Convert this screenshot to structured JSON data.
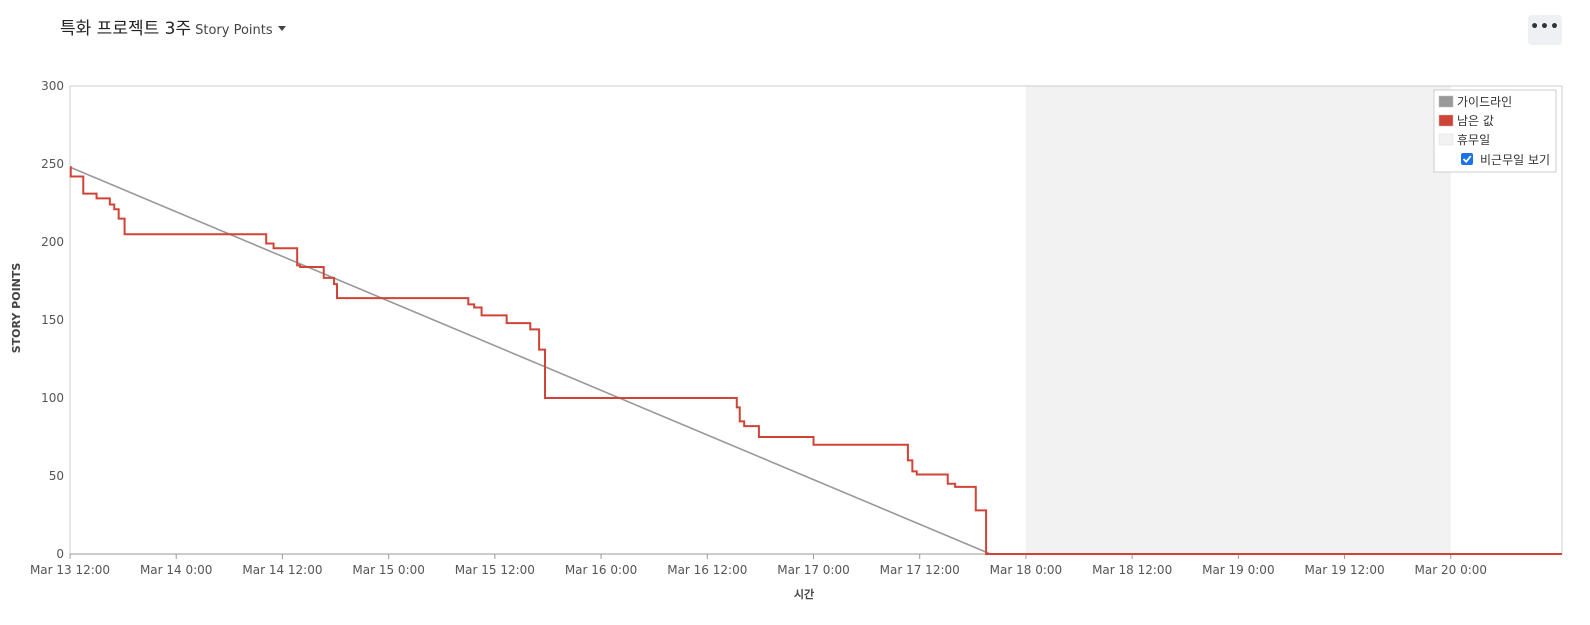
{
  "header": {
    "sprint_title": "특화 프로젝트 3주",
    "metric_label": "Story Points",
    "more_label": "•••"
  },
  "chart_data": {
    "type": "line",
    "xlabel": "시간",
    "ylabel": "STORY POINTS",
    "ylim": [
      0,
      300
    ],
    "yticks": [
      0,
      50,
      100,
      150,
      200,
      250,
      300
    ],
    "xlim": [
      "2023-03-13 12:00",
      "2023-03-20 12:00"
    ],
    "xticks": [
      "Mar 13 12:00",
      "Mar 14 0:00",
      "Mar 14 12:00",
      "Mar 15 0:00",
      "Mar 15 12:00",
      "Mar 16 0:00",
      "Mar 16 12:00",
      "Mar 17 0:00",
      "Mar 17 12:00",
      "Mar 18 0:00",
      "Mar 18 12:00",
      "Mar 19 0:00",
      "Mar 19 12:00",
      "Mar 20 0:00"
    ],
    "non_working_period": [
      "2023-03-18 0:00",
      "2023-03-20 0:00"
    ],
    "legend_position": "top-right",
    "series": [
      {
        "name": "가이드라인",
        "color": "#999999",
        "points": [
          [
            "2023-03-13 12:00",
            248
          ],
          [
            "2023-03-17 20:00",
            0
          ]
        ]
      },
      {
        "name": "남은 값",
        "color": "#d04437",
        "step": true,
        "points": [
          [
            "2023-03-13 12:00",
            248
          ],
          [
            "2023-03-13 12:05",
            242
          ],
          [
            "2023-03-13 13:30",
            231
          ],
          [
            "2023-03-13 15:00",
            228
          ],
          [
            "2023-03-13 16:30",
            224
          ],
          [
            "2023-03-13 17:00",
            221
          ],
          [
            "2023-03-13 17:30",
            215
          ],
          [
            "2023-03-13 18:10",
            205
          ],
          [
            "2023-03-14 10:10",
            199
          ],
          [
            "2023-03-14 11:00",
            196
          ],
          [
            "2023-03-14 13:40",
            185
          ],
          [
            "2023-03-14 14:00",
            184
          ],
          [
            "2023-03-14 16:40",
            177
          ],
          [
            "2023-03-14 17:50",
            173
          ],
          [
            "2023-03-14 18:10",
            164
          ],
          [
            "2023-03-15 9:00",
            160
          ],
          [
            "2023-03-15 9:40",
            158
          ],
          [
            "2023-03-15 10:30",
            153
          ],
          [
            "2023-03-15 13:20",
            148
          ],
          [
            "2023-03-15 16:00",
            144
          ],
          [
            "2023-03-15 17:00",
            131
          ],
          [
            "2023-03-15 17:40",
            100
          ],
          [
            "2023-03-16 15:20",
            94
          ],
          [
            "2023-03-16 15:40",
            85
          ],
          [
            "2023-03-16 16:10",
            82
          ],
          [
            "2023-03-16 17:50",
            75
          ],
          [
            "2023-03-17 0:00",
            70
          ],
          [
            "2023-03-17 10:40",
            60
          ],
          [
            "2023-03-17 11:10",
            53
          ],
          [
            "2023-03-17 11:40",
            51
          ],
          [
            "2023-03-17 15:10",
            45
          ],
          [
            "2023-03-17 16:00",
            43
          ],
          [
            "2023-03-17 18:20",
            28
          ],
          [
            "2023-03-17 19:30",
            0
          ],
          [
            "2023-03-20 12:00",
            0
          ]
        ]
      },
      {
        "name": "휴무일",
        "color": "#f2f2f2",
        "points": []
      }
    ],
    "legend_checkbox": {
      "label": "비근무일 보기",
      "checked": true
    }
  }
}
